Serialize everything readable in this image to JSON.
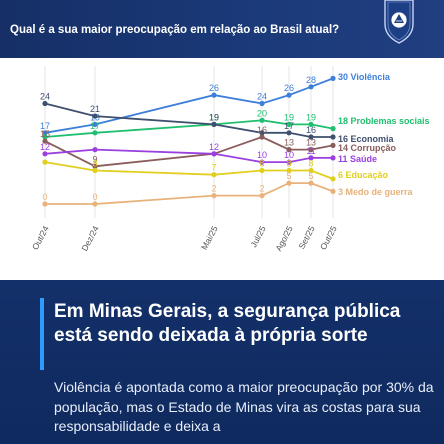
{
  "header": {
    "question": "Qual é a sua maior preocupação em relação ao Brasil atual?"
  },
  "chart_data": {
    "type": "line",
    "title": "Qual é a sua maior preocupação em relação ao Brasil atual?",
    "x": [
      "Out/24",
      "Dez/24",
      "Mai/25",
      "Jul/25",
      "Ago/25",
      "Set/25",
      "Out/25"
    ],
    "ylim": [
      0,
      32
    ],
    "grid": true,
    "legend": "right",
    "series": [
      {
        "name": "Violência",
        "color": "#3d7fd9",
        "values": [
          17,
          19,
          26,
          24,
          26,
          28,
          30
        ],
        "labels": [
          "17",
          "19",
          "26",
          "24",
          "26",
          "28",
          null
        ],
        "end_label": "30 Violência"
      },
      {
        "name": "Problemas sociais",
        "color": "#1fbf6f",
        "values": [
          16,
          17,
          19,
          20,
          19,
          19,
          18
        ],
        "labels": [
          null,
          "17",
          "19",
          "20",
          "19",
          "19",
          null
        ],
        "end_label": "18 Problemas sociais"
      },
      {
        "name": "Economia",
        "color": "#3f4f6e",
        "values": [
          24,
          21,
          19,
          17,
          17,
          16,
          16
        ],
        "labels": [
          "24",
          "21",
          "19",
          null,
          "17",
          "16",
          null
        ],
        "end_label": "16 Economia"
      },
      {
        "name": "Corrupção",
        "color": "#8a5c5c",
        "values": [
          15,
          9,
          12,
          16,
          13,
          13,
          14
        ],
        "labels": [
          "15",
          "9",
          null,
          "16",
          "13",
          "13",
          null
        ],
        "end_label": "14 Corrupção"
      },
      {
        "name": "Saúde",
        "color": "#9a3fe0",
        "values": [
          12,
          13,
          12,
          10,
          10,
          11,
          11
        ],
        "labels": [
          "12",
          null,
          "12",
          "10",
          "10",
          "11",
          null
        ],
        "end_label": "11 Saúde"
      },
      {
        "name": "Educação",
        "color": "#e0cf1f",
        "values": [
          10,
          8,
          7,
          8,
          8,
          8,
          6
        ],
        "labels": [
          null,
          "8",
          "7",
          "8",
          "8",
          "8",
          null
        ],
        "end_label": "6 Educação"
      },
      {
        "name": "Medo de guerra",
        "color": "#e8b27a",
        "values": [
          0,
          0,
          2,
          2,
          5,
          5,
          3
        ],
        "labels": [
          "0",
          "0",
          "2",
          "2",
          "5",
          "5",
          null
        ],
        "end_label": "3 Medo de guerra"
      }
    ]
  },
  "bottom": {
    "headline": "Em Minas Gerais, a segurança pública está sendo deixada à própria sorte",
    "body": "Violência é apontada como a maior preocupação por 30% da população, mas o Estado de Minas vira as costas para sua responsabilidade e deixa a"
  },
  "colors": {
    "header_bg": "#1b3a7a",
    "bottom_bg": "#0f2a5e",
    "accent": "#2f9bff"
  }
}
